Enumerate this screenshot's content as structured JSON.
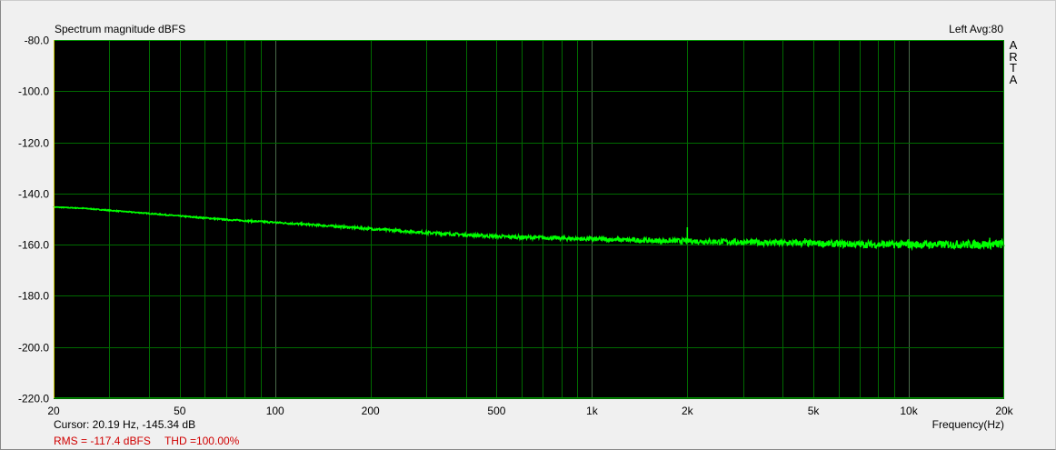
{
  "header": {
    "title": "Spectrum magnitude dBFS",
    "channel_info": "Left  Avg:80",
    "logo": "ARTA"
  },
  "footer": {
    "cursor": "Cursor: 20.19 Hz, -145.34 dB",
    "rms": "RMS = -117.4 dBFS",
    "thd": "THD =100.00%",
    "xlabel": "Frequency(Hz)"
  },
  "chart_data": {
    "type": "line",
    "title": "Spectrum magnitude dBFS",
    "xlabel": "Frequency(Hz)",
    "ylabel": "",
    "xscale": "log",
    "xlim": [
      20,
      20000
    ],
    "ylim": [
      -220,
      -80
    ],
    "grid": true,
    "background": "#000000",
    "grid_color": "#006a00",
    "line_color": "#00ff00",
    "y_ticks": [
      "-80.0",
      "-100.0",
      "-120.0",
      "-140.0",
      "-160.0",
      "-180.0",
      "-200.0",
      "-220.0"
    ],
    "y_tick_values": [
      -80,
      -100,
      -120,
      -140,
      -160,
      -180,
      -200,
      -220
    ],
    "x_ticks": [
      "20",
      "50",
      "100",
      "200",
      "500",
      "1k",
      "2k",
      "5k",
      "10k",
      "20k"
    ],
    "x_tick_values": [
      20,
      50,
      100,
      200,
      500,
      1000,
      2000,
      5000,
      10000,
      20000
    ],
    "series": [
      {
        "x": [
          20,
          25,
          30,
          40,
          50,
          70,
          100,
          150,
          200,
          300,
          500,
          700,
          1000,
          1500,
          2000,
          3000,
          5000,
          7000,
          10000,
          15000,
          20000
        ],
        "y": [
          -145.3,
          -145.8,
          -146.6,
          -147.8,
          -148.8,
          -150.2,
          -151.3,
          -152.7,
          -153.8,
          -155.3,
          -156.8,
          -157.3,
          -157.8,
          -158.4,
          -158.6,
          -159.0,
          -159.5,
          -159.9,
          -160.0,
          -159.9,
          -159.8
        ],
        "peaks": [
          {
            "x": 2000,
            "y": -153.2
          },
          {
            "x": 4700,
            "y": -157.5
          },
          {
            "x": 10000,
            "y": -157.8
          },
          {
            "x": 18000,
            "y": -157.3
          }
        ]
      }
    ]
  }
}
